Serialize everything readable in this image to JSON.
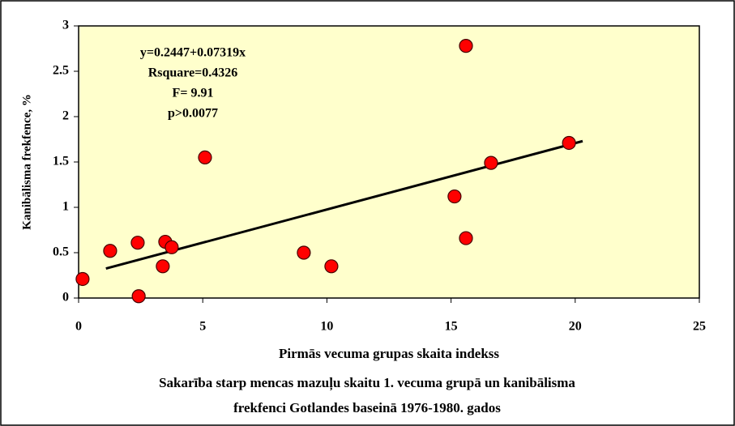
{
  "chart_data": {
    "type": "scatter",
    "x_label": "Pirmās vecuma grupas skaita indekss",
    "y_label": "Kanibālisma frekfence, %",
    "caption": [
      "Sakarība starp mencas mazuļu skaitu 1. vecuma grupā un kanibālisma",
      "frekfenci Gotlandes baseinā 1976-1980. gados"
    ],
    "annotations": [
      "y=0.2447+0.07319x",
      "Rsquare=0.4326",
      "F= 9.91",
      "p>0.0077"
    ],
    "series": [
      {
        "color": "#ff0000",
        "x": [
          0.16,
          1.27,
          2.42,
          2.38,
          3.49,
          3.75,
          3.39,
          5.09,
          9.07,
          10.18,
          15.14,
          15.6,
          15.6,
          16.61,
          19.75
        ],
        "values": [
          0.21,
          0.52,
          0.02,
          0.61,
          0.62,
          0.56,
          0.35,
          1.55,
          0.5,
          0.35,
          1.12,
          2.78,
          0.66,
          1.49,
          1.71
        ]
      }
    ],
    "trendline": {
      "color": "#000000",
      "x": [
        1.1,
        20.3
      ],
      "values": [
        0.325,
        1.73
      ]
    },
    "xlim": [
      0,
      25
    ],
    "xticks": [
      0,
      5,
      10,
      15,
      20,
      25
    ],
    "ylim": [
      0,
      3
    ],
    "yticks": [
      0,
      0.5,
      1,
      1.5,
      2,
      2.5,
      3
    ],
    "plot_background": "#ffffcc"
  }
}
